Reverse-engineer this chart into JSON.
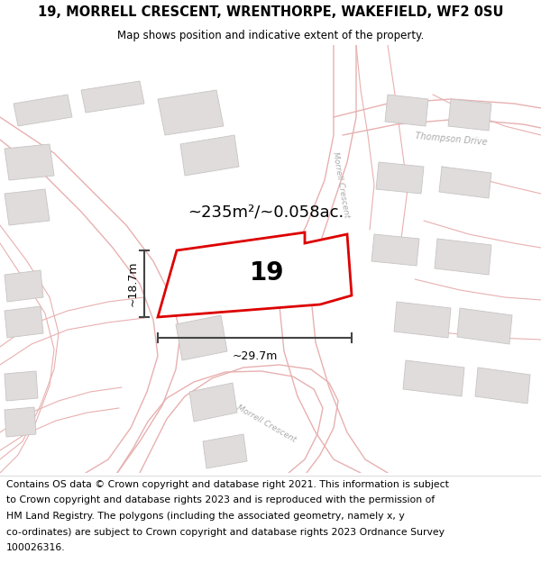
{
  "title_line1": "19, MORRELL CRESCENT, WRENTHORPE, WAKEFIELD, WF2 0SU",
  "title_line2": "Map shows position and indicative extent of the property.",
  "area_label": "~235m²/~0.058ac.",
  "width_label": "~29.7m",
  "height_label": "~18.7m",
  "plot_number": "19",
  "map_bg": "#f7f4f4",
  "plot_color": "#dd0000",
  "building_fill": "#e0dcdc",
  "building_edge": "#c8c4c4",
  "road_fill": "#ede8e8",
  "road_edge": "#d8c8c8",
  "pink_line": "#e8b0b0",
  "street_label_color": "#aaaaaa",
  "dim_color": "#444444",
  "title_fontsize": 10.5,
  "footer_fontsize": 7.8,
  "footer_lines": [
    "Contains OS data © Crown copyright and database right 2021. This information is subject",
    "to Crown copyright and database rights 2023 and is reproduced with the permission of",
    "HM Land Registry. The polygons (including the associated geometry, namely x, y",
    "co-ordinates) are subject to Crown copyright and database rights 2023 Ordnance Survey",
    "100026316."
  ]
}
